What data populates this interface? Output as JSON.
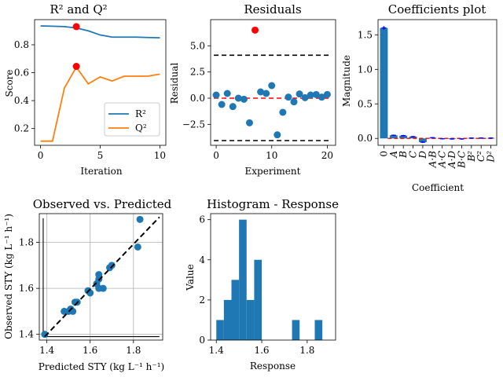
{
  "chart_data": [
    {
      "type": "line",
      "title": "R² and Q²",
      "xlabel": "Iteration",
      "ylabel": "Score",
      "xlim": [
        -0.5,
        10.5
      ],
      "ylim": [
        0.08,
        0.98
      ],
      "xticks": [
        0,
        5,
        10
      ],
      "xtick_labels": [
        "0",
        "5",
        "10"
      ],
      "yticks": [
        0.2,
        0.4,
        0.6,
        0.8
      ],
      "ytick_labels": [
        "0.2",
        "0.4",
        "0.6",
        "0.8"
      ],
      "legend_position": "lower-right",
      "series": [
        {
          "name": "R²",
          "color": "#1f77b4",
          "x": [
            0,
            1,
            2,
            3,
            4,
            5,
            6,
            7,
            8,
            9,
            10
          ],
          "values": [
            0.935,
            0.933,
            0.93,
            0.92,
            0.9,
            0.87,
            0.855,
            0.855,
            0.855,
            0.852,
            0.85
          ]
        },
        {
          "name": "Q²",
          "color": "#ff7f0e",
          "x": [
            0,
            1,
            2,
            3,
            4,
            5,
            6,
            7,
            8,
            9,
            10
          ],
          "values": [
            0.11,
            0.11,
            0.49,
            0.64,
            0.52,
            0.57,
            0.54,
            0.575,
            0.575,
            0.575,
            0.59
          ]
        }
      ],
      "highlight_points": [
        {
          "x": 3,
          "y": 0.93,
          "color": "#ff0000"
        },
        {
          "x": 3,
          "y": 0.645,
          "color": "#ff0000"
        }
      ]
    },
    {
      "type": "scatter",
      "title": "Residuals",
      "xlabel": "Experiment",
      "ylabel": "Residual",
      "xlim": [
        -1,
        21.5
      ],
      "ylim": [
        -4.5,
        7.5
      ],
      "xticks": [
        0,
        10,
        20
      ],
      "xtick_labels": [
        "0",
        "10",
        "20"
      ],
      "yticks": [
        -2.5,
        0.0,
        2.5,
        5.0
      ],
      "ytick_labels": [
        "−2.5",
        "0.0",
        "2.5",
        "5.0"
      ],
      "points": [
        {
          "x": 0,
          "y": 0.3
        },
        {
          "x": 1,
          "y": -0.6
        },
        {
          "x": 2,
          "y": 0.45
        },
        {
          "x": 3,
          "y": -0.8
        },
        {
          "x": 4,
          "y": 0.0
        },
        {
          "x": 5,
          "y": -0.1
        },
        {
          "x": 6,
          "y": -2.35
        },
        {
          "x": 8,
          "y": 0.6
        },
        {
          "x": 9,
          "y": 0.45
        },
        {
          "x": 10,
          "y": 1.2
        },
        {
          "x": 11,
          "y": -3.5
        },
        {
          "x": 12,
          "y": -1.35
        },
        {
          "x": 13,
          "y": 0.1
        },
        {
          "x": 14,
          "y": -0.35
        },
        {
          "x": 15,
          "y": 0.4
        },
        {
          "x": 16,
          "y": 0.05
        },
        {
          "x": 17,
          "y": 0.3
        },
        {
          "x": 18,
          "y": 0.35
        },
        {
          "x": 19,
          "y": 0.1
        },
        {
          "x": 20,
          "y": 0.35
        }
      ],
      "outliers": [
        {
          "x": 7,
          "y": 6.5,
          "color": "#ff0000"
        }
      ],
      "hlines": [
        {
          "y": 4.1,
          "color": "#000000",
          "style": "dashed"
        },
        {
          "y": -4.05,
          "color": "#000000",
          "style": "dashed"
        },
        {
          "y": 0.0,
          "color": "#ff0000",
          "style": "dashed"
        }
      ],
      "point_color": "#1f77b4"
    },
    {
      "type": "bar",
      "title": "Coefficients plot",
      "xlabel": "Coefficient",
      "ylabel": "Magnitude",
      "ylim": [
        -0.1,
        1.72
      ],
      "yticks": [
        0.0,
        0.5,
        1.0,
        1.5
      ],
      "ytick_labels": [
        "0.0",
        "0.5",
        "1.0",
        "1.5"
      ],
      "categories": [
        "0",
        "A",
        "B",
        "C",
        "D",
        "A·B",
        "A·C",
        "A·D",
        "B·C",
        "B²",
        "C²",
        "D²"
      ],
      "values": [
        1.6,
        0.045,
        0.04,
        0.025,
        -0.055,
        0.01,
        -0.005,
        -0.008,
        -0.008,
        0.005,
        0.005,
        0.005
      ],
      "bar_color": "#1f77b4",
      "errorbar_color": "#0000ff",
      "errors": [
        0.025,
        0.01,
        0.01,
        0.01,
        0.01,
        0.01,
        0.01,
        0.01,
        0.01,
        0.01,
        0.01,
        0.01
      ],
      "hline": {
        "y": 0.0,
        "color": "#ff0000",
        "style": "dashed"
      }
    },
    {
      "type": "scatter",
      "title": "Observed vs.  Predicted",
      "xlabel": "Predicted STY (kg L⁻¹ h⁻¹)",
      "ylabel": "Observed STY (kg L⁻¹ h⁻¹)",
      "xlim": [
        1.365,
        1.935
      ],
      "ylim": [
        1.375,
        1.925
      ],
      "xticks": [
        1.4,
        1.6,
        1.8
      ],
      "xtick_labels": [
        "1.4",
        "1.6",
        "1.8"
      ],
      "yticks": [
        1.4,
        1.6,
        1.8
      ],
      "ytick_labels": [
        "1.4",
        "1.6",
        "1.8"
      ],
      "grid": true,
      "points": [
        {
          "x": 1.39,
          "y": 1.4
        },
        {
          "x": 1.48,
          "y": 1.5
        },
        {
          "x": 1.5,
          "y": 1.5
        },
        {
          "x": 1.51,
          "y": 1.51
        },
        {
          "x": 1.52,
          "y": 1.5
        },
        {
          "x": 1.53,
          "y": 1.54
        },
        {
          "x": 1.54,
          "y": 1.54
        },
        {
          "x": 1.59,
          "y": 1.59
        },
        {
          "x": 1.6,
          "y": 1.58
        },
        {
          "x": 1.63,
          "y": 1.62
        },
        {
          "x": 1.64,
          "y": 1.64
        },
        {
          "x": 1.64,
          "y": 1.66
        },
        {
          "x": 1.64,
          "y": 1.6
        },
        {
          "x": 1.66,
          "y": 1.6
        },
        {
          "x": 1.69,
          "y": 1.69
        },
        {
          "x": 1.7,
          "y": 1.7
        },
        {
          "x": 1.82,
          "y": 1.78
        },
        {
          "x": 1.83,
          "y": 1.9
        }
      ],
      "point_color": "#1f77b4",
      "identity_line": {
        "from": [
          1.39,
          1.39
        ],
        "to": [
          1.92,
          1.91
        ],
        "color": "#000000",
        "style": "dashed"
      }
    },
    {
      "type": "bar",
      "title": "Histogram - Response",
      "xlabel": "Response",
      "ylabel": "Value",
      "xlim": [
        1.375,
        1.925
      ],
      "ylim": [
        0,
        6.3
      ],
      "xticks": [
        1.4,
        1.6,
        1.8
      ],
      "xtick_labels": [
        "1.4",
        "1.6",
        "1.8"
      ],
      "yticks": [
        0,
        2,
        4,
        6
      ],
      "ytick_labels": [
        "0",
        "2",
        "4",
        "6"
      ],
      "bin_edges": [
        1.4,
        1.4333,
        1.4667,
        1.5,
        1.5333,
        1.5667,
        1.6,
        1.6333,
        1.6667,
        1.7,
        1.7333,
        1.7667,
        1.8,
        1.8333,
        1.8667,
        1.9
      ],
      "values": [
        1,
        2,
        3,
        6,
        2,
        4,
        0,
        0,
        0,
        0,
        1,
        0,
        0,
        1,
        0
      ],
      "bar_color": "#1f77b4"
    }
  ]
}
